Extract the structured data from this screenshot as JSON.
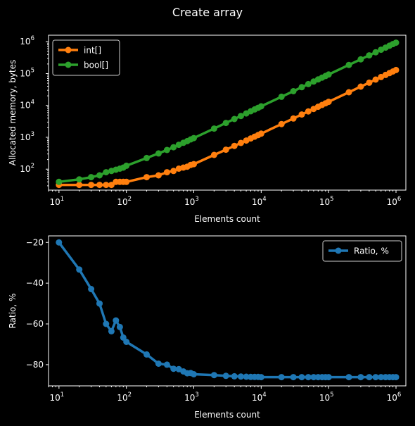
{
  "figure": {
    "title": "Create array"
  },
  "chart_data": [
    {
      "type": "line",
      "x_scale": "log",
      "y_scale": "log",
      "xlabel": "Elements count",
      "ylabel": "Allocated memory, bytes",
      "xlim": [
        7,
        1400000
      ],
      "ylim": [
        22,
        1600000
      ],
      "x_ticks": [
        {
          "value": 10,
          "base": "10",
          "exp": "1"
        },
        {
          "value": 100,
          "base": "10",
          "exp": "2"
        },
        {
          "value": 1000,
          "base": "10",
          "exp": "3"
        },
        {
          "value": 10000,
          "base": "10",
          "exp": "4"
        },
        {
          "value": 100000,
          "base": "10",
          "exp": "5"
        },
        {
          "value": 1000000,
          "base": "10",
          "exp": "6"
        }
      ],
      "y_ticks": [
        {
          "value": 100,
          "base": "10",
          "exp": "2"
        },
        {
          "value": 1000,
          "base": "10",
          "exp": "3"
        },
        {
          "value": 10000,
          "base": "10",
          "exp": "4"
        },
        {
          "value": 100000,
          "base": "10",
          "exp": "5"
        },
        {
          "value": 1000000,
          "base": "10",
          "exp": "6"
        }
      ],
      "legend": "top-left",
      "grid": false,
      "x": [
        10,
        20,
        30,
        40,
        50,
        60,
        70,
        80,
        90,
        100,
        200,
        300,
        400,
        500,
        600,
        700,
        800,
        900,
        1000,
        2000,
        3000,
        4000,
        5000,
        6000,
        7000,
        8000,
        9000,
        10000,
        20000,
        30000,
        40000,
        50000,
        60000,
        70000,
        80000,
        90000,
        100000,
        200000,
        300000,
        400000,
        500000,
        600000,
        700000,
        800000,
        900000,
        1000000
      ],
      "series": [
        {
          "name": "int[]",
          "color": "#ff7f0e",
          "values": [
            32,
            32,
            32,
            32,
            32,
            32,
            40,
            40,
            40,
            40,
            56,
            64,
            80,
            88,
            104,
            112,
            120,
            136,
            144,
            280,
            408,
            536,
            664,
            792,
            920,
            1048,
            1176,
            1304,
            2600,
            3896,
            5200,
            6488,
            7784,
            9080,
            10376,
            11672,
            12968,
            25936,
            38896,
            51856,
            64816,
            77776,
            90736,
            103696,
            116656,
            129616
          ]
        },
        {
          "name": "bool[]",
          "color": "#2ca02c",
          "values": [
            40,
            48,
            56,
            64,
            80,
            88,
            96,
            104,
            112,
            128,
            224,
            312,
            400,
            488,
            584,
            672,
            760,
            856,
            944,
            1880,
            2816,
            3744,
            4680,
            5624,
            6552,
            7488,
            8424,
            9360,
            18712,
            28064,
            37416,
            46768,
            56120,
            65472,
            74824,
            84176,
            93528,
            187040,
            280552,
            374064,
            467576,
            561088,
            654600,
            748112,
            841624,
            935136
          ]
        }
      ]
    },
    {
      "type": "line",
      "x_scale": "log",
      "y_scale": "linear",
      "xlabel": "Elements count",
      "ylabel": "Ratio, %",
      "xlim": [
        7,
        1400000
      ],
      "ylim": [
        -90.4,
        -16.8
      ],
      "x_ticks": [
        {
          "value": 10,
          "base": "10",
          "exp": "1"
        },
        {
          "value": 100,
          "base": "10",
          "exp": "2"
        },
        {
          "value": 1000,
          "base": "10",
          "exp": "3"
        },
        {
          "value": 10000,
          "base": "10",
          "exp": "4"
        },
        {
          "value": 100000,
          "base": "10",
          "exp": "5"
        },
        {
          "value": 1000000,
          "base": "10",
          "exp": "6"
        }
      ],
      "y_ticks": [
        {
          "value": -20,
          "label": "−20"
        },
        {
          "value": -40,
          "label": "−40"
        },
        {
          "value": -60,
          "label": "−60"
        },
        {
          "value": -80,
          "label": "−80"
        }
      ],
      "legend": "top-right",
      "grid": false,
      "x": [
        10,
        20,
        30,
        40,
        50,
        60,
        70,
        80,
        90,
        100,
        200,
        300,
        400,
        500,
        600,
        700,
        800,
        900,
        1000,
        2000,
        3000,
        4000,
        5000,
        6000,
        7000,
        8000,
        9000,
        10000,
        20000,
        30000,
        40000,
        50000,
        60000,
        70000,
        80000,
        90000,
        100000,
        200000,
        300000,
        400000,
        500000,
        600000,
        700000,
        800000,
        900000,
        1000000
      ],
      "series": [
        {
          "name": "Ratio, %",
          "color": "#1f77b4",
          "values": [
            -20,
            -33.3,
            -42.9,
            -50,
            -60,
            -63.6,
            -58.3,
            -61.5,
            -66.7,
            -68.8,
            -75,
            -79.5,
            -80,
            -82,
            -82.2,
            -83.3,
            -84.2,
            -84.1,
            -84.7,
            -85.1,
            -85.5,
            -85.7,
            -85.8,
            -85.9,
            -86,
            -86,
            -86,
            -86.1,
            -86.1,
            -86.1,
            -86.1,
            -86.1,
            -86.1,
            -86.1,
            -86.1,
            -86.1,
            -86.1,
            -86.1,
            -86.1,
            -86.1,
            -86.1,
            -86.1,
            -86.1,
            -86.1,
            -86.1,
            -86.1
          ]
        }
      ]
    }
  ]
}
